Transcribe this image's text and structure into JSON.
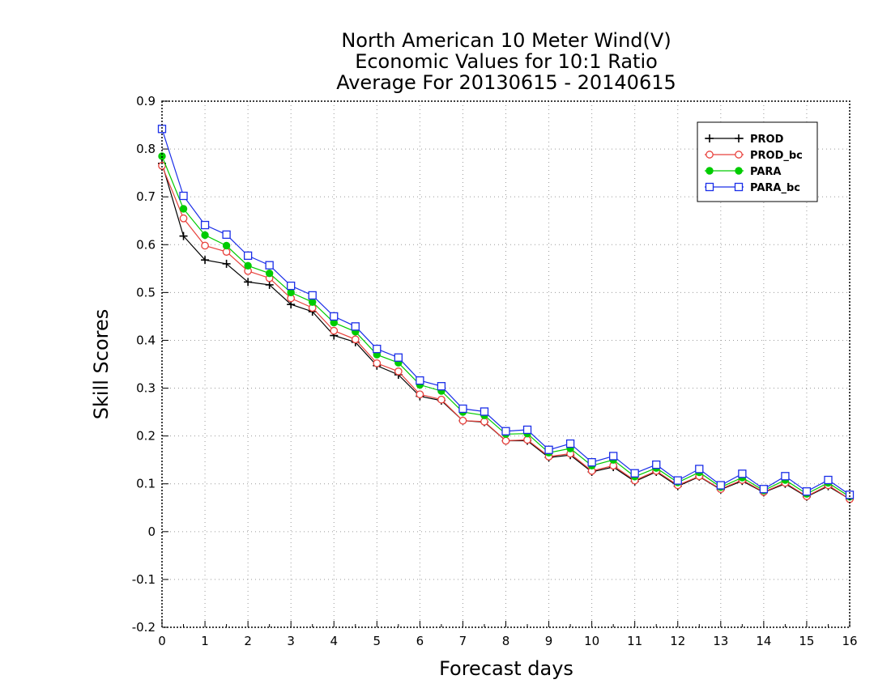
{
  "chart_data": {
    "type": "line",
    "title": [
      "North American 10 Meter Wind(V)",
      "Economic Values for 10:1 Ratio",
      "Average For 20130615 - 20140615"
    ],
    "xlabel": "Forecast days",
    "ylabel": "Skill Scores",
    "xlim": [
      0,
      16
    ],
    "ylim": [
      -0.2,
      0.9
    ],
    "xticks": [
      0,
      1,
      2,
      3,
      4,
      5,
      6,
      7,
      8,
      9,
      10,
      11,
      12,
      13,
      14,
      15,
      16
    ],
    "xtick_labels": [
      "0",
      "1",
      "2",
      "3",
      "4",
      "5",
      "6",
      "7",
      "8",
      "9",
      "10",
      "11",
      "12",
      "13",
      "14",
      "15",
      "16"
    ],
    "yticks": [
      -0.2,
      -0.1,
      0,
      0.1,
      0.2,
      0.3,
      0.4,
      0.5,
      0.6,
      0.7,
      0.8,
      0.9
    ],
    "ytick_labels": [
      "-0.2",
      "-0.1",
      "0",
      "0.1",
      "0.2",
      "0.3",
      "0.4",
      "0.5",
      "0.6",
      "0.7",
      "0.8",
      "0.9"
    ],
    "grid": true,
    "legend_position": "top-right",
    "x": [
      0,
      0.5,
      1,
      1.5,
      2,
      2.5,
      3,
      3.5,
      4,
      4.5,
      5,
      5.5,
      6,
      6.5,
      7,
      7.5,
      8,
      8.5,
      9,
      9.5,
      10,
      10.5,
      11,
      11.5,
      12,
      12.5,
      13,
      13.5,
      14,
      14.5,
      15,
      15.5,
      16
    ],
    "series": [
      {
        "name": "PROD",
        "color": "#000000",
        "marker": "plus",
        "values": [
          0.77,
          0.618,
          0.568,
          0.56,
          0.522,
          0.516,
          0.475,
          0.46,
          0.41,
          0.396,
          0.347,
          0.328,
          0.283,
          0.274,
          0.232,
          0.229,
          0.19,
          0.19,
          0.155,
          0.16,
          0.125,
          0.135,
          0.105,
          0.125,
          0.095,
          0.115,
          0.088,
          0.106,
          0.082,
          0.1,
          0.073,
          0.095,
          0.068
        ]
      },
      {
        "name": "PROD_bc",
        "color": "#e8413c",
        "marker": "circle-open",
        "values": [
          0.765,
          0.655,
          0.598,
          0.585,
          0.545,
          0.53,
          0.488,
          0.468,
          0.42,
          0.402,
          0.352,
          0.335,
          0.287,
          0.276,
          0.232,
          0.23,
          0.19,
          0.192,
          0.157,
          0.163,
          0.127,
          0.138,
          0.107,
          0.127,
          0.097,
          0.116,
          0.089,
          0.108,
          0.083,
          0.102,
          0.074,
          0.097,
          0.068
        ]
      },
      {
        "name": "PARA",
        "color": "#00cc00",
        "marker": "circle-filled",
        "values": [
          0.785,
          0.675,
          0.62,
          0.598,
          0.556,
          0.54,
          0.5,
          0.48,
          0.437,
          0.418,
          0.37,
          0.353,
          0.307,
          0.294,
          0.25,
          0.243,
          0.204,
          0.205,
          0.165,
          0.174,
          0.138,
          0.15,
          0.115,
          0.133,
          0.103,
          0.124,
          0.093,
          0.113,
          0.086,
          0.108,
          0.079,
          0.102,
          0.073
        ]
      },
      {
        "name": "PARA_bc",
        "color": "#1a2ee8",
        "marker": "square-open",
        "values": [
          0.842,
          0.702,
          0.641,
          0.621,
          0.577,
          0.557,
          0.514,
          0.494,
          0.45,
          0.429,
          0.382,
          0.364,
          0.316,
          0.304,
          0.257,
          0.251,
          0.21,
          0.213,
          0.171,
          0.184,
          0.145,
          0.158,
          0.122,
          0.14,
          0.107,
          0.131,
          0.097,
          0.121,
          0.089,
          0.116,
          0.084,
          0.108,
          0.077
        ]
      }
    ]
  }
}
